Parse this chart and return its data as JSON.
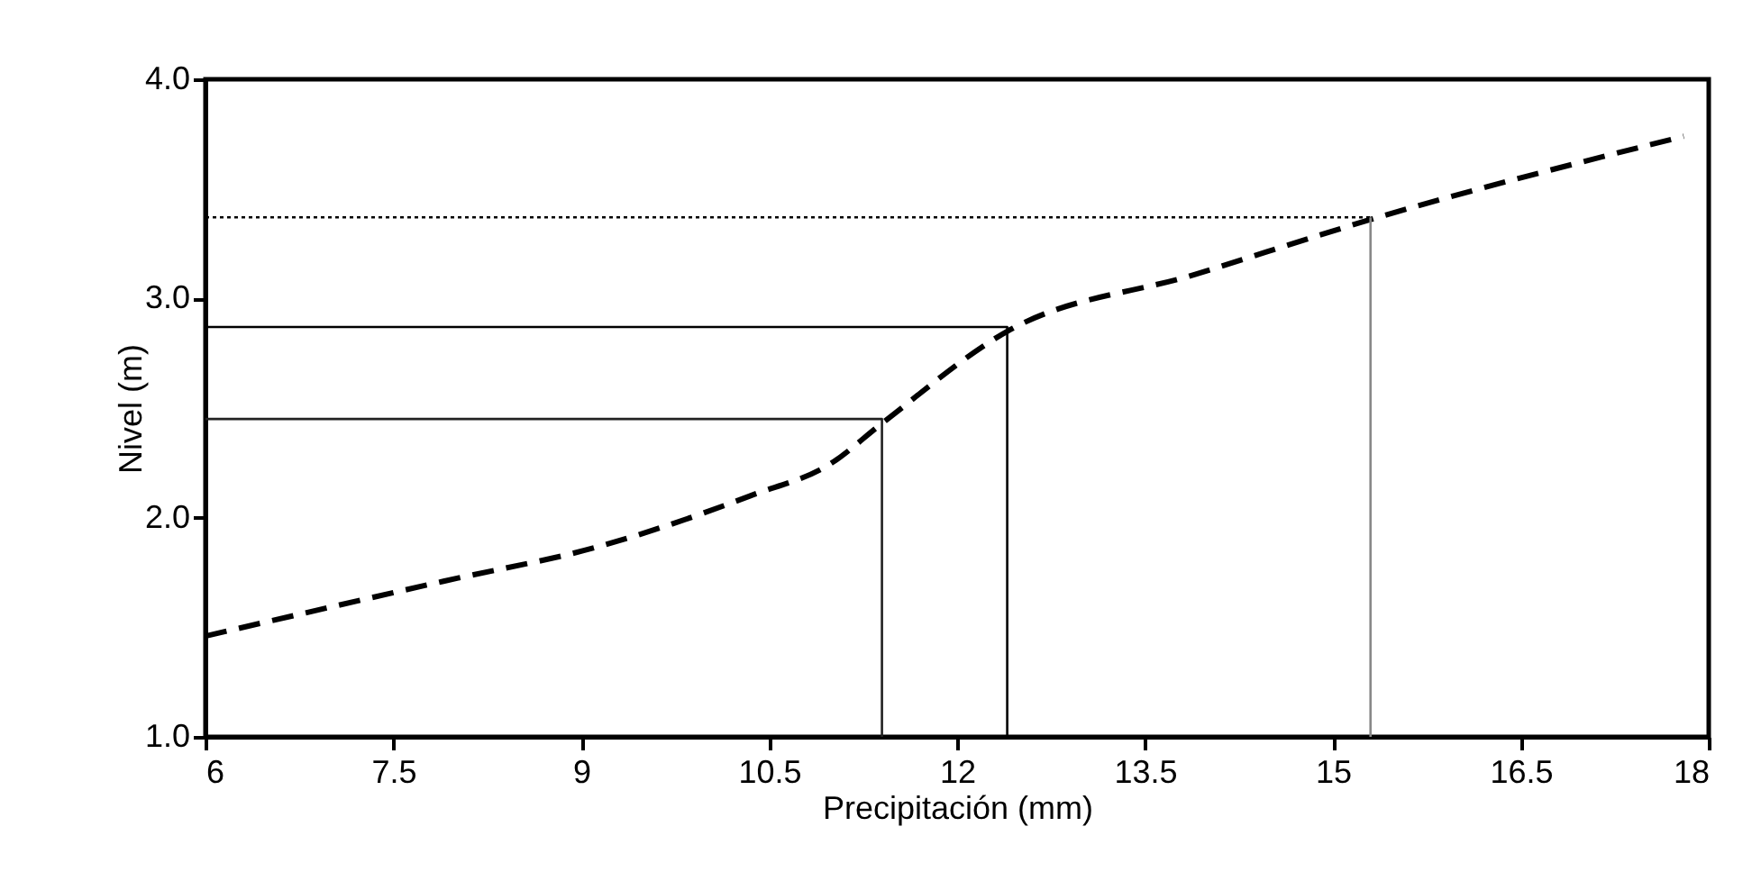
{
  "chart_data": {
    "type": "line",
    "xlabel": "Precipitación (mm)",
    "ylabel": "Nivel (m)",
    "xlim": [
      6,
      18
    ],
    "ylim": [
      1.0,
      4.0
    ],
    "xticks": [
      6,
      7.5,
      9,
      10.5,
      12,
      13.5,
      15,
      16.5,
      18
    ],
    "yticks": [
      {
        "value": 1,
        "label": "1.0"
      },
      {
        "value": 2,
        "label": "2.0"
      },
      {
        "value": 3,
        "label": "3.0"
      },
      {
        "value": 4,
        "label": "4.0"
      }
    ],
    "grid": false,
    "marker": "none",
    "series": [
      {
        "color": "#000000",
        "line_style": "dashed",
        "x": [
          6,
          7.9,
          9.15,
          10.35,
          11.0,
          11.4,
          12.4,
          13.9,
          15.3,
          17.8
        ],
        "values": [
          1.46,
          1.71,
          1.87,
          2.1,
          2.25,
          2.43,
          2.85,
          3.11,
          3.36,
          3.74
        ]
      },
      {
        "color": "#222222",
        "line_style": "solid",
        "x": [
          6,
          11.4,
          11.4
        ],
        "values": [
          2.45,
          2.45,
          1.0
        ]
      },
      {
        "color": "#000000",
        "line_style": "solid",
        "x": [
          6,
          12.4,
          12.4
        ],
        "values": [
          2.87,
          2.87,
          1.0
        ]
      },
      {
        "color": "#000000",
        "line_style": "dotted",
        "x": [
          6,
          15.3
        ],
        "values": [
          3.37,
          3.37
        ]
      },
      {
        "color": "#888888",
        "line_style": "solid",
        "x": [
          15.3,
          15.3
        ],
        "values": [
          3.37,
          1.0
        ]
      }
    ]
  }
}
